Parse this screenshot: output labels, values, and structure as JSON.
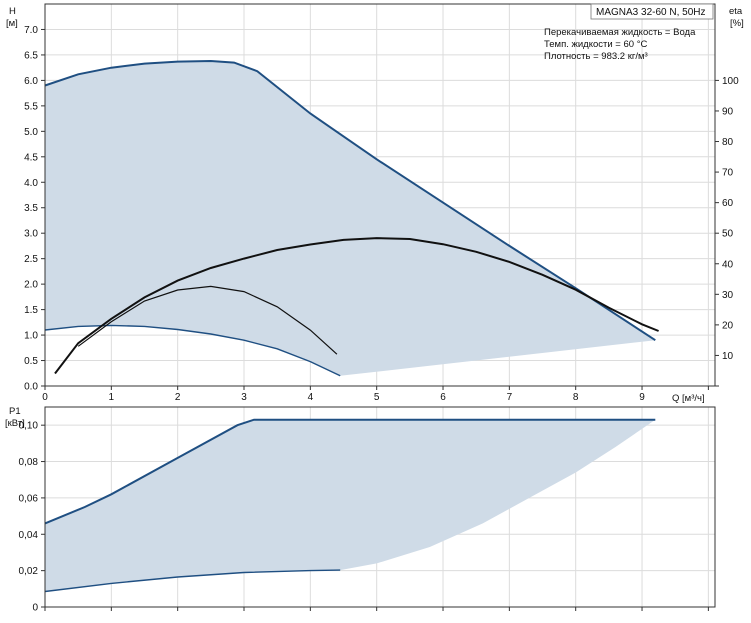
{
  "chart_data": [
    {
      "type": "area",
      "id": "head-chart",
      "model_label": "MAGNA3 32-60 N, 50Hz",
      "info_lines": [
        "Перекачиваемая жидкость = Вода",
        "Темп. жидкости = 60 °C",
        "Плотность = 983.2 кг/м³"
      ],
      "ylabel_line1": "H",
      "ylabel_line2": "[м]",
      "y2label_line1": "eta",
      "y2label_line2": "[%]",
      "xlabel": "Q [м³/ч]",
      "xlim": [
        0,
        10.1
      ],
      "ylim": [
        0,
        7.5
      ],
      "y2lim": [
        0,
        125
      ],
      "xticks": [
        "0",
        "1",
        "2",
        "3",
        "4",
        "5",
        "6",
        "7",
        "8",
        "9"
      ],
      "yticks": [
        "0.0",
        "0.5",
        "1.0",
        "1.5",
        "2.0",
        "2.5",
        "3.0",
        "3.5",
        "4.0",
        "4.5",
        "5.0",
        "5.5",
        "6.0",
        "6.5",
        "7.0"
      ],
      "y2ticks": [
        "10",
        "20",
        "30",
        "40",
        "50",
        "60",
        "70",
        "80",
        "90",
        "100"
      ],
      "grid": true,
      "fill_color": "#cfdbe7",
      "curve_color": "#1f4f82",
      "eta_color": "#111111",
      "series": [
        {
          "role": "max-head",
          "x": [
            0,
            0.5,
            1,
            1.5,
            2,
            2.5,
            2.85,
            3.2,
            4,
            5,
            6,
            7,
            8,
            9.2
          ],
          "y": [
            5.9,
            6.12,
            6.25,
            6.33,
            6.37,
            6.38,
            6.35,
            6.18,
            5.35,
            4.45,
            3.6,
            2.75,
            1.92,
            0.9
          ]
        },
        {
          "role": "min-head",
          "x": [
            0,
            0.5,
            1,
            1.5,
            2,
            2.5,
            3,
            3.5,
            4,
            4.45
          ],
          "y": [
            1.1,
            1.17,
            1.19,
            1.17,
            1.11,
            1.02,
            0.9,
            0.73,
            0.48,
            0.2
          ]
        },
        {
          "role": "min-max-join",
          "x": [
            4.45,
            9.2
          ],
          "y": [
            0.2,
            0.9
          ]
        },
        {
          "role": "eta-max",
          "x": [
            0.15,
            0.5,
            1,
            1.5,
            2,
            2.5,
            3,
            3.5,
            4,
            4.5,
            5,
            5.5,
            6,
            6.5,
            7,
            7.5,
            8,
            8.5,
            9,
            9.25
          ],
          "y": [
            4.1,
            14,
            22,
            29,
            34.5,
            38.6,
            41.7,
            44.5,
            46.3,
            47.8,
            48.4,
            48.1,
            46.4,
            43.9,
            40.6,
            36.4,
            31.5,
            25.6,
            20.2,
            18
          ]
        },
        {
          "role": "eta-min",
          "x": [
            0.5,
            1,
            1.5,
            2,
            2.5,
            3,
            3.5,
            4,
            4.4
          ],
          "y": [
            13,
            21,
            27.8,
            31.4,
            32.6,
            30.9,
            25.9,
            18.3,
            10.4
          ]
        }
      ]
    },
    {
      "type": "area",
      "id": "power-chart",
      "ylabel_line1": "P1",
      "ylabel_line2": "[кВт]",
      "xlim": [
        0,
        10.1
      ],
      "ylim": [
        0,
        0.11
      ],
      "yticks": [
        "0",
        "0,02",
        "0,04",
        "0,06",
        "0,08",
        "0,10"
      ],
      "grid": true,
      "fill_color": "#cfdbe7",
      "curve_color": "#1f4f82",
      "series": [
        {
          "role": "max-power",
          "x": [
            0,
            0.6,
            1,
            2,
            2.9,
            3.15,
            4,
            5,
            6,
            7,
            8,
            9.2
          ],
          "y": [
            0.046,
            0.055,
            0.062,
            0.082,
            0.1,
            0.103,
            0.103,
            0.103,
            0.103,
            0.103,
            0.103,
            0.103
          ]
        },
        {
          "role": "min-power",
          "x": [
            0,
            1,
            2,
            3,
            4,
            4.45
          ],
          "y": [
            0.0085,
            0.013,
            0.0165,
            0.019,
            0.02,
            0.0203
          ]
        },
        {
          "role": "min-max-join",
          "x": [
            4.45,
            5,
            5.8,
            6.6,
            7.3,
            8,
            8.6,
            9.2
          ],
          "y": [
            0.0203,
            0.024,
            0.033,
            0.046,
            0.06,
            0.074,
            0.088,
            0.103
          ]
        }
      ]
    }
  ]
}
